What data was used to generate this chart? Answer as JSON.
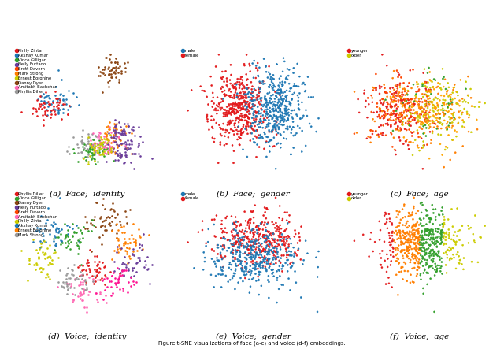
{
  "face_id_legend": [
    [
      "Philly Zinta",
      "#e31a1c"
    ],
    [
      "Akshay Kumar",
      "#1f78b4"
    ],
    [
      "Vince Gilligan",
      "#33a02c"
    ],
    [
      "Nelly Furtado",
      "#6a3d9a"
    ],
    [
      "Brett Davern",
      "#ff4500"
    ],
    [
      "Mark Strong",
      "#ff7f00"
    ],
    [
      "Ernest Borgnine",
      "#cccc00"
    ],
    [
      "Danny Dyer",
      "#8B4513"
    ],
    [
      "Amitabh Bachchan",
      "#ff69b4"
    ],
    [
      "Phyllis Diller",
      "#999999"
    ]
  ],
  "voice_id_legend": [
    [
      "Phyllis Diller",
      "#e31a1c"
    ],
    [
      "Vince Gilligan",
      "#33a02c"
    ],
    [
      "Danny Dyer",
      "#8B4513"
    ],
    [
      "Nelly Furtado",
      "#6a3d9a"
    ],
    [
      "Brett Davern",
      "#ff4500"
    ],
    [
      "Amitabh Bachchan",
      "#ff69b4"
    ],
    [
      "Philly Zinta",
      "#cccc00"
    ],
    [
      "Akshay Kumar",
      "#1f78b4"
    ],
    [
      "Ernest Borgnine",
      "#ff7f00"
    ],
    [
      "Mark Strong",
      "#999999"
    ]
  ],
  "male_color": "#1f78b4",
  "female_color": "#e31a1c",
  "younger_color": "#e31a1c",
  "older_color": "#cccc00",
  "background": "#ffffff",
  "seed": 42,
  "subtitle_a": "(a)  Face;  identity",
  "subtitle_b": "(b)  Face;  gender",
  "subtitle_c": "(c)  Face;  age",
  "subtitle_d": "(d)  Voice;  identity",
  "subtitle_e": "(e)  Voice;  gender",
  "subtitle_f": "(f)  Voice;  age"
}
